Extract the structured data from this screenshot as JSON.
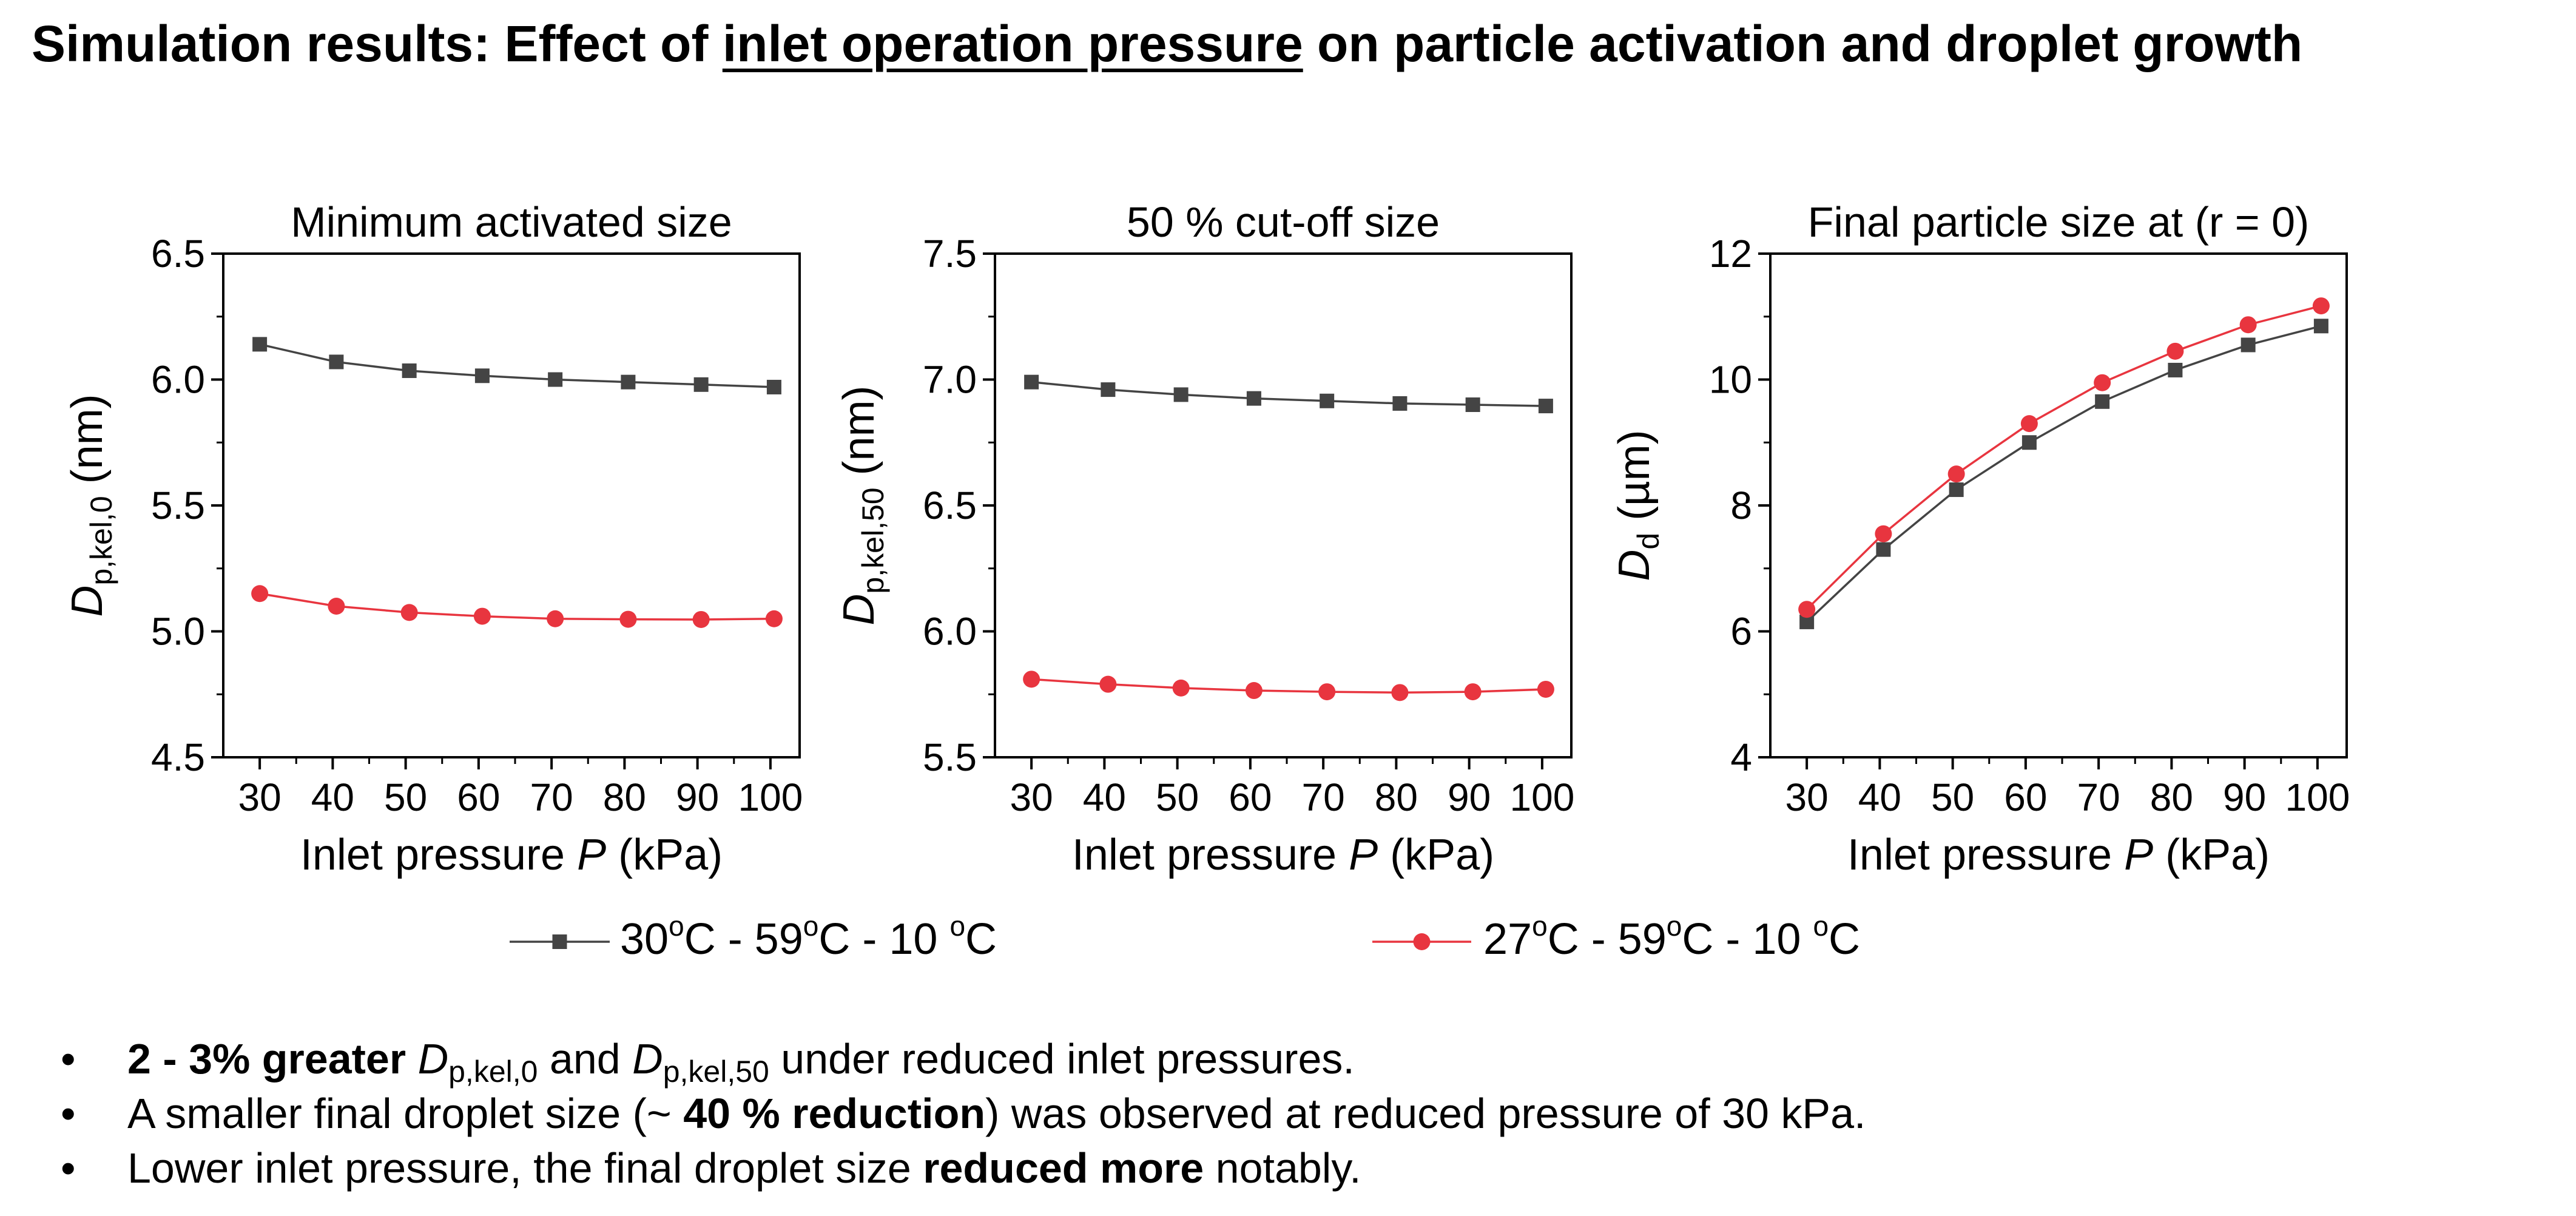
{
  "slide": {
    "title_pre": "Simulation results: Effect of ",
    "title_underlined": "inlet operation pressure",
    "title_post": " on particle activation and droplet growth"
  },
  "colors": {
    "series_gray": "#444444",
    "series_red": "#e8353f"
  },
  "chart_data": [
    {
      "type": "line",
      "title": "Minimum activated size",
      "xlabel": {
        "pre": "Inlet pressure ",
        "italic": "P",
        "post": " (kPa)"
      },
      "ylabel": {
        "italic": "D",
        "sub": "p,kel,0",
        "post": " (nm)"
      },
      "xlim": [
        25,
        104
      ],
      "ylim": [
        4.5,
        6.5
      ],
      "xticks": [
        30,
        40,
        50,
        60,
        70,
        80,
        90,
        100
      ],
      "xtick_labels": [
        "30",
        "40",
        "50",
        "60",
        "70",
        "80",
        "90",
        "100"
      ],
      "yticks": [
        4.5,
        5.0,
        5.5,
        6.0,
        6.5
      ],
      "ytick_labels": [
        "4.5",
        "5.0",
        "5.5",
        "6.0",
        "6.5"
      ],
      "yminor": true,
      "x": [
        30,
        40.5,
        50.5,
        60.5,
        70.5,
        80.5,
        90.5,
        100.5
      ],
      "series": [
        {
          "name": "30 °C - 59 °C - 10 °C",
          "marker": "square",
          "values": [
            6.14,
            6.07,
            6.035,
            6.015,
            6.0,
            5.99,
            5.98,
            5.97
          ]
        },
        {
          "name": "27 °C - 59 °C - 10 °C",
          "marker": "circle",
          "values": [
            5.15,
            5.1,
            5.075,
            5.06,
            5.05,
            5.048,
            5.047,
            5.05
          ]
        }
      ]
    },
    {
      "type": "line",
      "title": "50 % cut-off size",
      "xlabel": {
        "pre": "Inlet pressure ",
        "italic": "P",
        "post": " (kPa)"
      },
      "ylabel": {
        "italic": "D",
        "sub": "p,kel,50",
        "post": " (nm)"
      },
      "xlim": [
        25,
        104
      ],
      "ylim": [
        5.5,
        7.5
      ],
      "xticks": [
        30,
        40,
        50,
        60,
        70,
        80,
        90,
        100
      ],
      "xtick_labels": [
        "30",
        "40",
        "50",
        "60",
        "70",
        "80",
        "90",
        "100"
      ],
      "yticks": [
        5.5,
        6.0,
        6.5,
        7.0,
        7.5
      ],
      "ytick_labels": [
        "5.5",
        "6.0",
        "6.5",
        "7.0",
        "7.5"
      ],
      "yminor": true,
      "x": [
        30,
        40.5,
        50.5,
        60.5,
        70.5,
        80.5,
        90.5,
        100.5
      ],
      "series": [
        {
          "name": "30 °C - 59 °C - 10 °C",
          "marker": "square",
          "values": [
            6.99,
            6.96,
            6.94,
            6.925,
            6.915,
            6.905,
            6.9,
            6.895
          ]
        },
        {
          "name": "27 °C - 59 °C - 10 °C",
          "marker": "circle",
          "values": [
            5.81,
            5.79,
            5.775,
            5.765,
            5.76,
            5.757,
            5.76,
            5.77
          ]
        }
      ]
    },
    {
      "type": "line",
      "title": "Final particle size at (r = 0)",
      "xlabel": {
        "pre": "Inlet pressure ",
        "italic": "P",
        "post": " (kPa)"
      },
      "ylabel": {
        "italic": "D",
        "sub": "d",
        "post": " (µm)"
      },
      "xlim": [
        25,
        104
      ],
      "ylim": [
        4,
        12
      ],
      "xticks": [
        30,
        40,
        50,
        60,
        70,
        80,
        90,
        100
      ],
      "xtick_labels": [
        "30",
        "40",
        "50",
        "60",
        "70",
        "80",
        "90",
        "100"
      ],
      "yticks": [
        4,
        6,
        8,
        10,
        12
      ],
      "ytick_labels": [
        "4",
        "6",
        "8",
        "10",
        "12"
      ],
      "yminor": true,
      "x": [
        30,
        40.5,
        50.5,
        60.5,
        70.5,
        80.5,
        90.5,
        100.5
      ],
      "series": [
        {
          "name": "30 °C - 59 °C - 10 °C",
          "marker": "square",
          "values": [
            6.15,
            7.3,
            8.25,
            9.0,
            9.65,
            10.15,
            10.55,
            10.85
          ]
        },
        {
          "name": "27 °C - 59 °C - 10 °C",
          "marker": "circle",
          "values": [
            6.35,
            7.55,
            8.5,
            9.3,
            9.95,
            10.45,
            10.87,
            11.17
          ]
        }
      ]
    }
  ],
  "legend": {
    "items": [
      {
        "marker": "square",
        "color_key": "series_gray",
        "parts": [
          "30",
          "o",
          "C - 59",
          "o",
          "C - 10 ",
          "o",
          "C"
        ]
      },
      {
        "marker": "circle",
        "color_key": "series_red",
        "parts": [
          "27",
          "o",
          "C - 59",
          "o",
          "C - 10 ",
          "o",
          "C"
        ]
      }
    ]
  },
  "bullets": [
    {
      "bold": "2 - 3% greater",
      "t1": " ",
      "i1": "D",
      "s1": "p,kel,0",
      "t2": " and ",
      "i2": "D",
      "s2": "p,kel,50",
      "t3": " under reduced inlet pressures."
    },
    {
      "t1": "A smaller final droplet size (~ ",
      "bold": "40 % reduction",
      "t2": ") was observed at reduced pressure of 30 kPa."
    },
    {
      "t1": "Lower inlet pressure, the final droplet size ",
      "bold": "reduced more",
      "t2": " notably."
    }
  ]
}
